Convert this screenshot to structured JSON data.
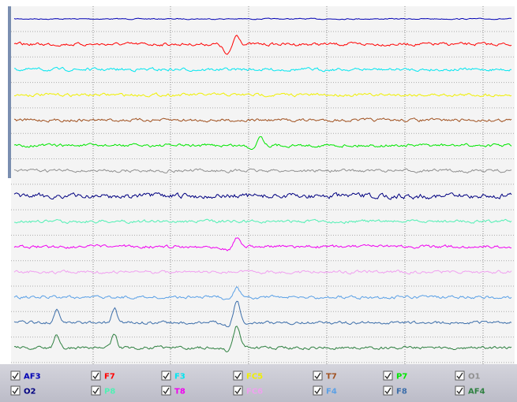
{
  "channels": [
    {
      "name": "AF3",
      "color": "#0000b4"
    },
    {
      "name": "F7",
      "color": "#ff0000"
    },
    {
      "name": "F3",
      "color": "#00e6f0"
    },
    {
      "name": "FC5",
      "color": "#f0f000"
    },
    {
      "name": "T7",
      "color": "#a0501e"
    },
    {
      "name": "P7",
      "color": "#00e600"
    },
    {
      "name": "O1",
      "color": "#909090"
    },
    {
      "name": "O2",
      "color": "#000080"
    },
    {
      "name": "P8",
      "color": "#50f0b4"
    },
    {
      "name": "T8",
      "color": "#f000f0"
    },
    {
      "name": "FC6",
      "color": "#f0a0f0"
    },
    {
      "name": "F4",
      "color": "#5aa0e6"
    },
    {
      "name": "F8",
      "color": "#3c6eaa"
    },
    {
      "name": "AF4",
      "color": "#2e8040"
    }
  ]
}
